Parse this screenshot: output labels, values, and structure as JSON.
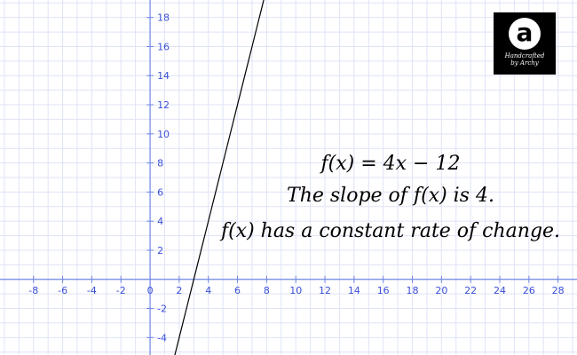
{
  "function_label": "f(x) = 4x − 12",
  "slope_statement": "The slope of f(x) is 4.",
  "rate_statement": "f(x) has a constant rate of change.",
  "logo": {
    "letter": "a",
    "credit_line1": "Handcrafted",
    "credit_line2": "by Archy"
  },
  "colors": {
    "grid": "#dfe3f7",
    "axis": "#6f86e3",
    "tick_label": "#3a4fd6",
    "plot_line": "#000000"
  },
  "chart_data": {
    "type": "line",
    "function": "4x - 12",
    "slope": 4,
    "intercept": -12,
    "x_ticks": [
      -8,
      -6,
      -4,
      -2,
      0,
      2,
      4,
      6,
      8,
      10,
      12,
      14,
      16,
      18,
      20,
      22,
      24,
      26,
      28
    ],
    "y_ticks": [
      -4,
      -2,
      2,
      4,
      6,
      8,
      10,
      12,
      14,
      16,
      18
    ],
    "xlim": [
      -10.3,
      29.3
    ],
    "ylim": [
      -5.2,
      19.2
    ],
    "grid": true
  }
}
